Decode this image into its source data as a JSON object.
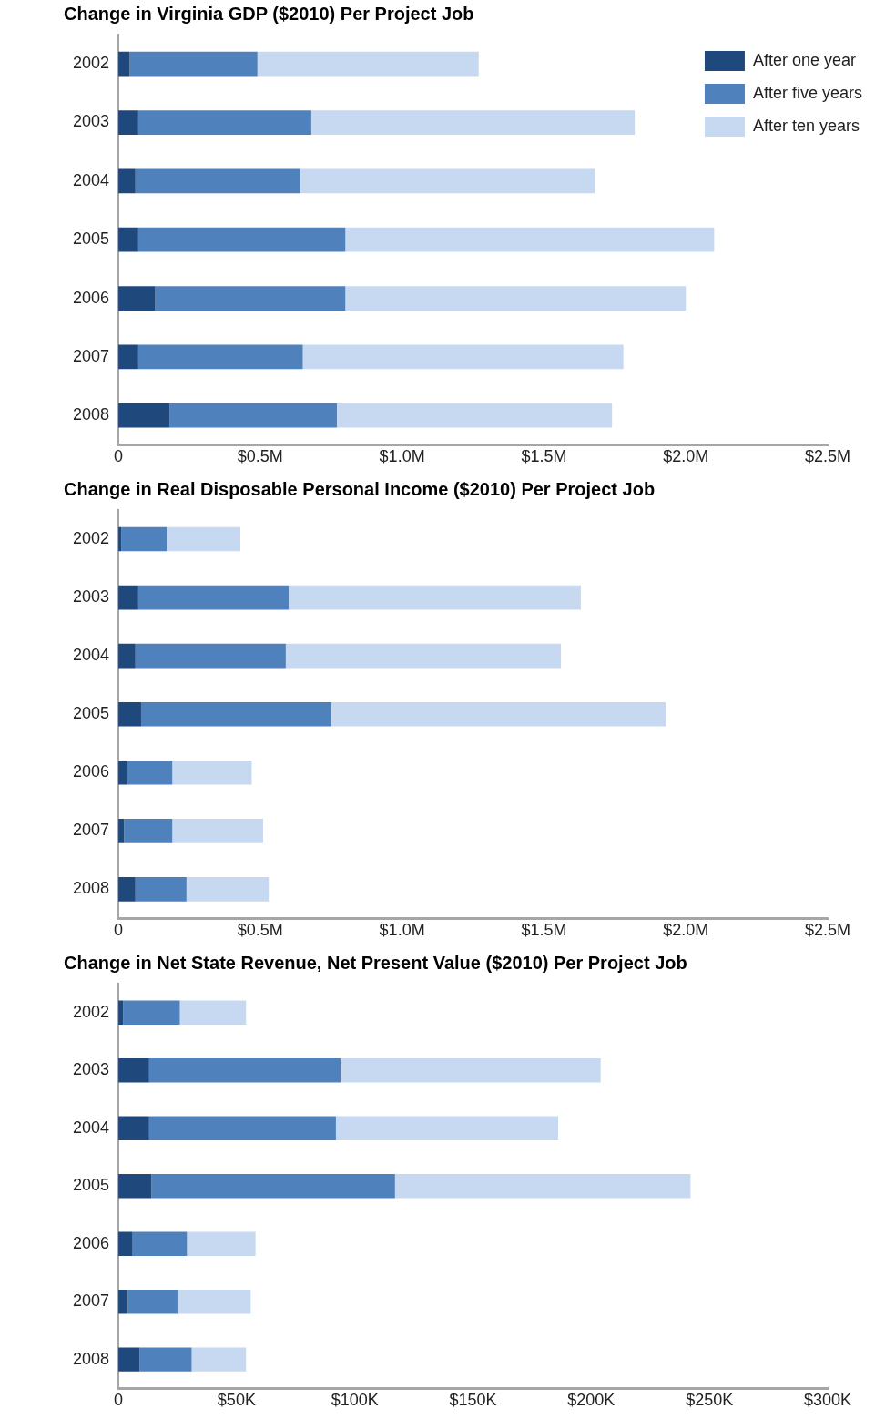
{
  "chart_data": [
    {
      "type": "bar",
      "orientation": "horizontal",
      "stacked": true,
      "legend": "top right",
      "title": "Change in Virginia GDP ($2010) Per Project Job",
      "categories": [
        "2002",
        "2003",
        "2004",
        "2005",
        "2006",
        "2007",
        "2008"
      ],
      "xlim": [
        0,
        2.5
      ],
      "xticks": [
        {
          "value": 0,
          "label": "0"
        },
        {
          "value": 0.5,
          "label": "$0.5M"
        },
        {
          "value": 1,
          "label": "$1.0M"
        },
        {
          "value": 1.5,
          "label": "$1.5M"
        },
        {
          "value": 2,
          "label": "$2.0M"
        },
        {
          "value": 2.5,
          "label": "$2.5M"
        }
      ],
      "series": [
        {
          "name": "After one year",
          "color": "#1f497d",
          "values": [
            0.04,
            0.07,
            0.06,
            0.07,
            0.13,
            0.07,
            0.18
          ]
        },
        {
          "name": "After five years",
          "color": "#4f81bd",
          "values": [
            0.45,
            0.61,
            0.58,
            0.73,
            0.67,
            0.58,
            0.59
          ]
        },
        {
          "name": "After ten years",
          "color": "#c6d9f1",
          "values": [
            0.78,
            1.14,
            1.04,
            1.3,
            1.2,
            1.13,
            0.97
          ]
        }
      ]
    },
    {
      "type": "bar",
      "orientation": "horizontal",
      "stacked": true,
      "title": "Change in Real Disposable Personal Income ($2010) Per Project Job",
      "categories": [
        "2002",
        "2003",
        "2004",
        "2005",
        "2006",
        "2007",
        "2008"
      ],
      "xlim": [
        0,
        2.5
      ],
      "xticks": [
        {
          "value": 0,
          "label": "0"
        },
        {
          "value": 0.5,
          "label": "$0.5M"
        },
        {
          "value": 1,
          "label": "$1.0M"
        },
        {
          "value": 1.5,
          "label": "$1.5M"
        },
        {
          "value": 2,
          "label": "$2.0M"
        },
        {
          "value": 2.5,
          "label": "$2.5M"
        }
      ],
      "series": [
        {
          "color": "#1f497d",
          "values": [
            0.01,
            0.07,
            0.06,
            0.08,
            0.03,
            0.02,
            0.06
          ]
        },
        {
          "color": "#4f81bd",
          "values": [
            0.16,
            0.53,
            0.53,
            0.67,
            0.16,
            0.17,
            0.18
          ]
        },
        {
          "color": "#c6d9f1",
          "values": [
            0.26,
            1.03,
            0.97,
            1.18,
            0.28,
            0.32,
            0.29
          ]
        }
      ]
    },
    {
      "type": "bar",
      "orientation": "horizontal",
      "stacked": true,
      "title": "Change in Net State Revenue, Net Present Value ($2010) Per Project Job",
      "categories": [
        "2002",
        "2003",
        "2004",
        "2005",
        "2006",
        "2007",
        "2008"
      ],
      "xlim": [
        0,
        300
      ],
      "xticks": [
        {
          "value": 0,
          "label": "0"
        },
        {
          "value": 50,
          "label": "$50K"
        },
        {
          "value": 100,
          "label": "$100K"
        },
        {
          "value": 150,
          "label": "$150K"
        },
        {
          "value": 200,
          "label": "$200K"
        },
        {
          "value": 250,
          "label": "$250K"
        },
        {
          "value": 300,
          "label": "$300K"
        }
      ],
      "series": [
        {
          "color": "#1f497d",
          "values": [
            2,
            13,
            13,
            14,
            6,
            4,
            9
          ]
        },
        {
          "color": "#4f81bd",
          "values": [
            24,
            81,
            79,
            103,
            23,
            21,
            22
          ]
        },
        {
          "color": "#c6d9f1",
          "values": [
            28,
            110,
            94,
            125,
            29,
            31,
            23
          ]
        }
      ]
    }
  ]
}
